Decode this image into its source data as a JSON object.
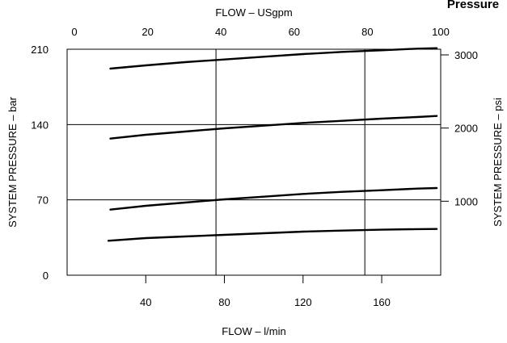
{
  "chart_data": {
    "type": "line",
    "title": "Pressure",
    "xlabel": "FLOW – l/min",
    "x2label": "FLOW – USgpm",
    "ylabel": "SYSTEM PRESSURE – bar",
    "y2label": "SYSTEM PRESSURE – psi",
    "xlim": [
      0,
      190
    ],
    "ylim": [
      0,
      210
    ],
    "x2lim": [
      0,
      100
    ],
    "y2lim": [
      0,
      3000
    ],
    "xticks": [
      40,
      80,
      120,
      160
    ],
    "x2ticks": [
      0,
      20,
      40,
      60,
      80,
      100
    ],
    "yticks": [
      0,
      70,
      140,
      210
    ],
    "y2ticks": [
      1000,
      2000,
      3000
    ],
    "grid": true,
    "series": [
      {
        "x": [
          22,
          40,
          60,
          80,
          100,
          120,
          140,
          160,
          178,
          188
        ],
        "values": [
          192,
          195,
          198,
          200.5,
          203,
          205.5,
          207.5,
          209,
          210.5,
          211
        ]
      },
      {
        "x": [
          22,
          40,
          60,
          80,
          100,
          120,
          140,
          160,
          178,
          188
        ],
        "values": [
          127,
          130.5,
          133.5,
          136.5,
          139,
          141.5,
          143.5,
          145.5,
          147,
          148
        ]
      },
      {
        "x": [
          22,
          40,
          60,
          80,
          100,
          120,
          140,
          160,
          178,
          188
        ],
        "values": [
          61,
          64.5,
          67.5,
          70.5,
          73,
          75.5,
          77.5,
          79,
          80.5,
          81
        ]
      },
      {
        "x": [
          21,
          40,
          60,
          80,
          100,
          120,
          140,
          160,
          178,
          188
        ],
        "values": [
          32,
          34.5,
          36,
          37.5,
          39,
          40.5,
          41.5,
          42.3,
          42.8,
          43
        ]
      }
    ]
  }
}
